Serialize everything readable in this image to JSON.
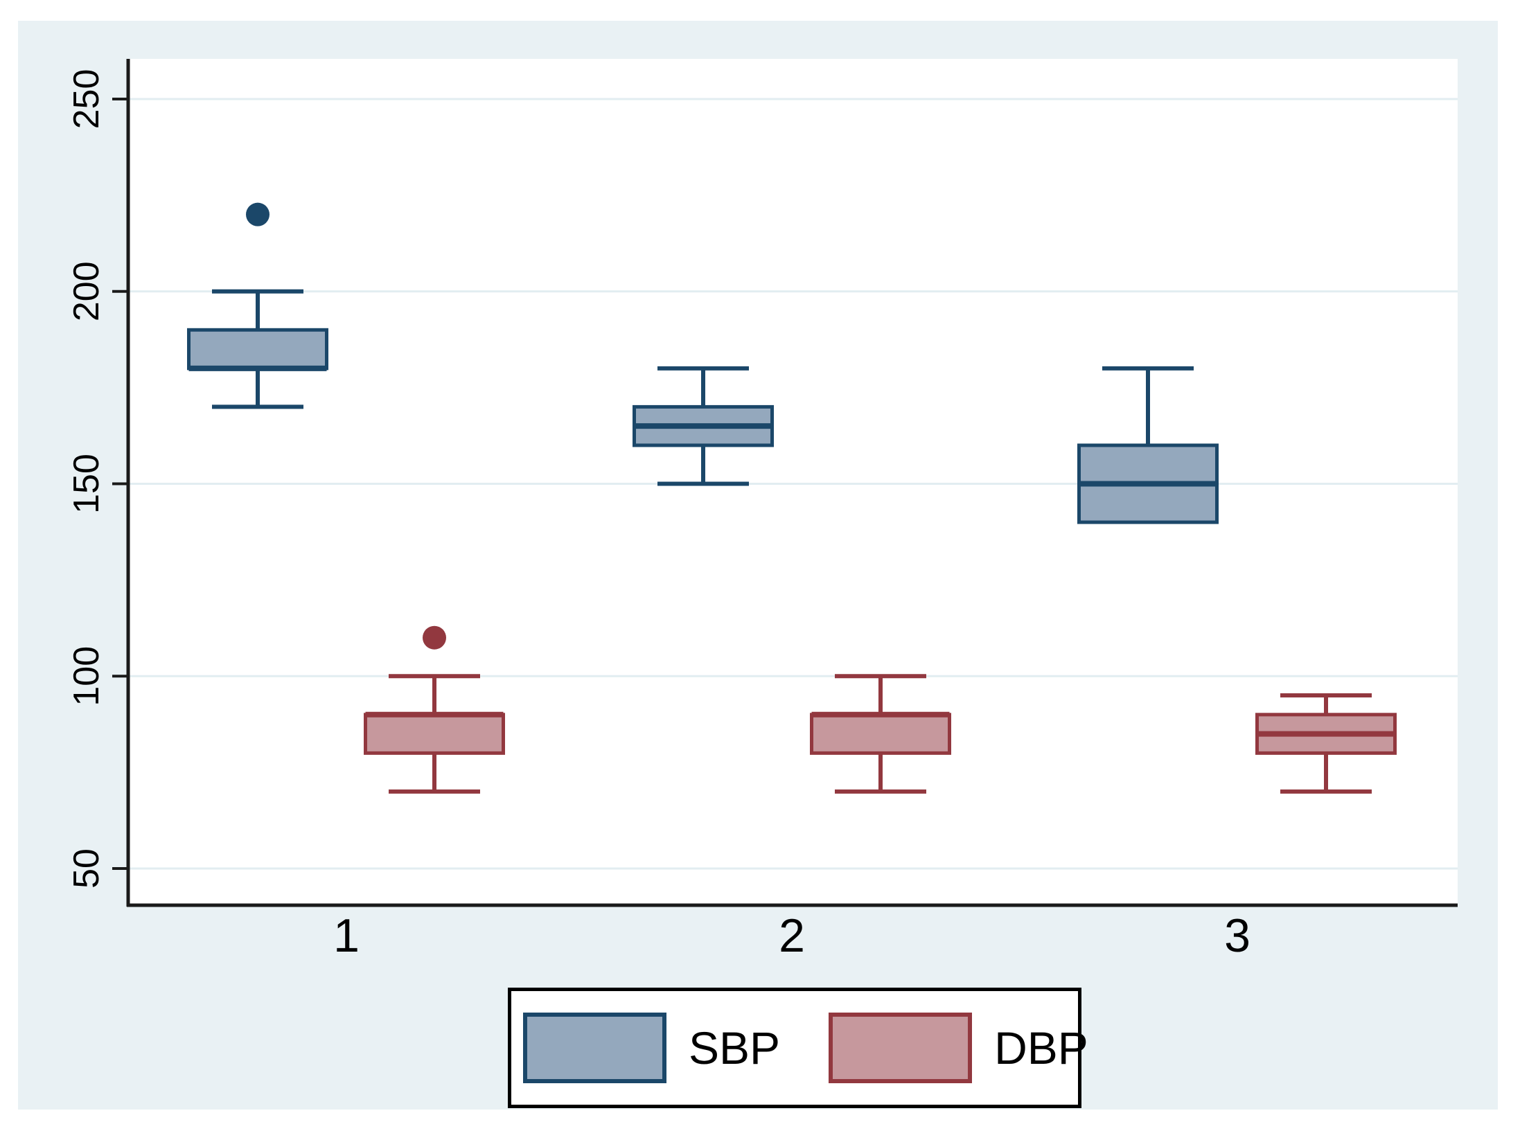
{
  "figure": {
    "background_color": "#e9f1f4",
    "plot_background_color": "#ffffff",
    "grid_color": "#e2edf1",
    "axis_color": "#1a1a1a",
    "text_color": "#000000"
  },
  "legend": {
    "items": [
      {
        "label": "SBP",
        "swatch_fill": "#94a8bd",
        "swatch_border": "#1b4769"
      },
      {
        "label": "DBP",
        "swatch_fill": "#c6989d",
        "swatch_border": "#92383f"
      }
    ]
  },
  "chart_data": {
    "type": "box",
    "title": "",
    "xlabel": "",
    "ylabel": "",
    "categories": [
      "1",
      "2",
      "3"
    ],
    "yticks": [
      50,
      100,
      150,
      200,
      250
    ],
    "ylim": [
      40,
      261
    ],
    "grid": true,
    "legend_position": "bottom",
    "series": [
      {
        "name": "SBP",
        "fill": "#94a8bd",
        "stroke": "#1b4769",
        "boxes": [
          {
            "category": "1",
            "whisker_low": 170,
            "q1": 180,
            "median": 180,
            "q3": 190,
            "whisker_high": 200,
            "outliers": [
              220
            ]
          },
          {
            "category": "2",
            "whisker_low": 150,
            "q1": 160,
            "median": 165,
            "q3": 170,
            "whisker_high": 180,
            "outliers": []
          },
          {
            "category": "3",
            "whisker_low": 140,
            "q1": 140,
            "median": 150,
            "q3": 160,
            "whisker_high": 180,
            "outliers": []
          }
        ]
      },
      {
        "name": "DBP",
        "fill": "#c6989d",
        "stroke": "#92383f",
        "boxes": [
          {
            "category": "1",
            "whisker_low": 70,
            "q1": 80,
            "median": 90,
            "q3": 90,
            "whisker_high": 100,
            "outliers": [
              110
            ]
          },
          {
            "category": "2",
            "whisker_low": 70,
            "q1": 80,
            "median": 90,
            "q3": 90,
            "whisker_high": 100,
            "outliers": []
          },
          {
            "category": "3",
            "whisker_low": 70,
            "q1": 80,
            "median": 85,
            "q3": 90,
            "whisker_high": 95,
            "outliers": []
          }
        ]
      }
    ]
  }
}
